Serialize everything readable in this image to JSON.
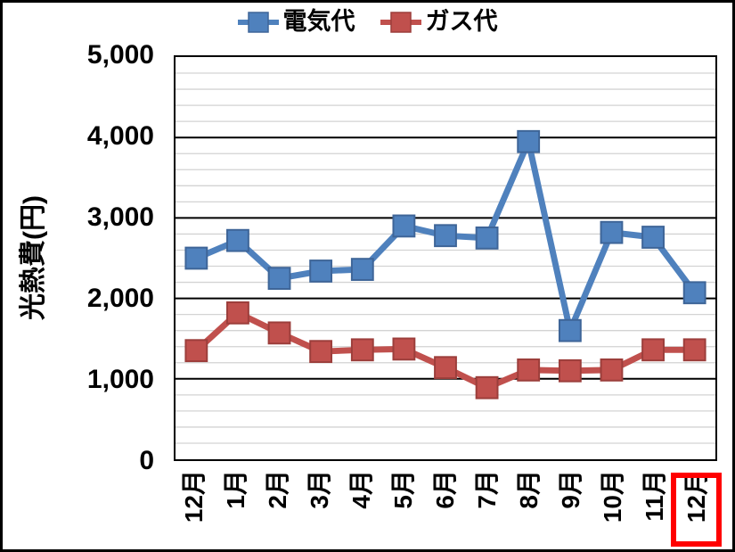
{
  "chart_data": {
    "type": "line",
    "title": "",
    "xlabel": "",
    "ylabel": "光熱費(円)",
    "ylim": [
      0,
      5000
    ],
    "y_major_step": 1000,
    "y_minor_step": 200,
    "y_tick_labels": [
      "0",
      "1,000",
      "2,000",
      "3,000",
      "4,000",
      "5,000"
    ],
    "grid": true,
    "legend_position": "top",
    "categories": [
      "12月",
      "1月",
      "2月",
      "3月",
      "4月",
      "5月",
      "6月",
      "7月",
      "8月",
      "9月",
      "10月",
      "11月",
      "12月"
    ],
    "series": [
      {
        "name": "電気代",
        "color": "#4F81BD",
        "marker_border_color": "#3E6598",
        "marker": "square",
        "values": [
          2500,
          2720,
          2250,
          2340,
          2360,
          2900,
          2780,
          2750,
          3950,
          1600,
          2820,
          2760,
          2070
        ]
      },
      {
        "name": "ガス代",
        "color": "#C0504D",
        "marker_border_color": "#9C3E3B",
        "marker": "square",
        "values": [
          1350,
          1820,
          1570,
          1340,
          1360,
          1370,
          1140,
          890,
          1110,
          1100,
          1110,
          1360,
          1360
        ]
      }
    ],
    "highlight": {
      "category_index": 12,
      "label": "12月",
      "box_color": "#FF0000"
    }
  },
  "style": {
    "minor_grid_color": "#D3D3D3",
    "major_grid_color": "#000000",
    "line_width": 7,
    "marker_size": 24
  }
}
